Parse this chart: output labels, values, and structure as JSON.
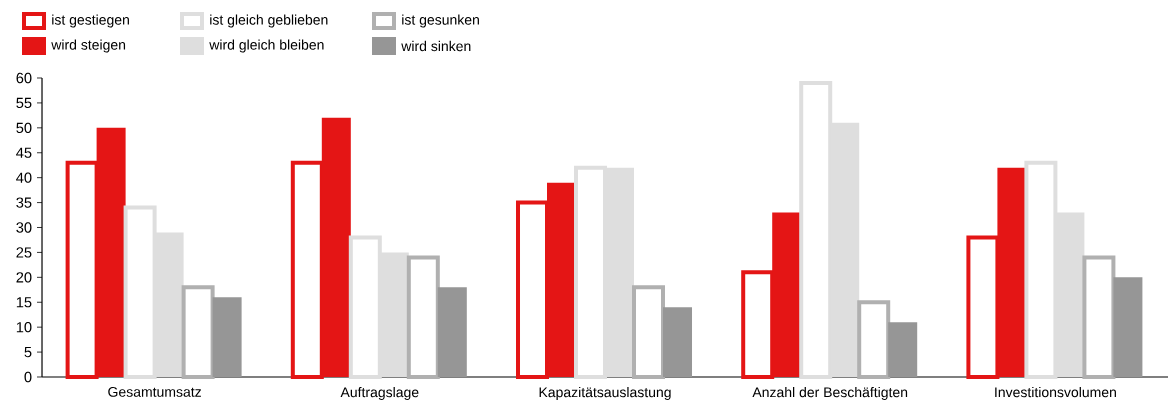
{
  "chart_data": {
    "type": "bar",
    "categories": [
      "Gesamtumsatz",
      "Auftragslage",
      "Kapazitätsauslastung",
      "Anzahl der Beschäftigten",
      "Investitionsvolumen"
    ],
    "series": [
      {
        "name": "ist gestiegen",
        "color": "#e41515",
        "line_style": "solid",
        "values": [
          43,
          43,
          35,
          21,
          28
        ]
      },
      {
        "name": "wird steigen",
        "color": "#e41515",
        "values": [
          50,
          52,
          39,
          33,
          42
        ]
      },
      {
        "name": "ist gleich geblieben",
        "color": "#dedede",
        "line_style": "solid",
        "values": [
          34,
          28,
          42,
          59,
          43
        ]
      },
      {
        "name": "wird gleich bleiben",
        "color": "#dedede",
        "values": [
          29,
          25,
          42,
          51,
          33
        ]
      },
      {
        "name": "ist gesunken",
        "color": "#b0b0b0",
        "line_style": "solid",
        "values": [
          18,
          24,
          18,
          15,
          24
        ]
      },
      {
        "name": "wird sinken",
        "color": "#969696",
        "values": [
          16,
          18,
          14,
          11,
          20
        ]
      }
    ],
    "ylim": [
      0,
      60
    ],
    "yticks": [
      0,
      5,
      10,
      15,
      20,
      25,
      30,
      35,
      40,
      45,
      50,
      55,
      60
    ],
    "grid": false,
    "legend": "top left"
  }
}
